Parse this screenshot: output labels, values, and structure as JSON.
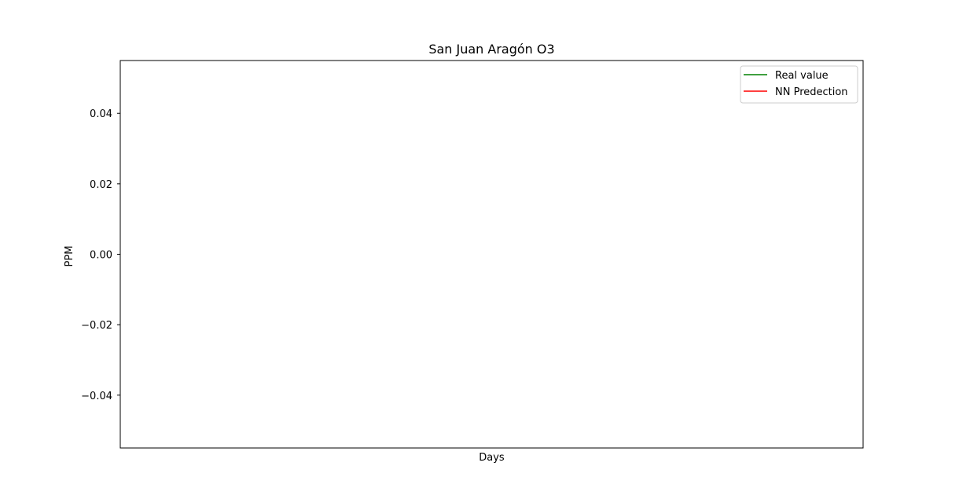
{
  "chart_data": {
    "type": "line",
    "title": "San Juan Aragón O3",
    "xlabel": "Days",
    "ylabel": "PPM",
    "ylim": [
      -0.055,
      0.055
    ],
    "y_ticks": [
      0.04,
      0.02,
      0.0,
      -0.02,
      -0.04
    ],
    "y_tick_labels": [
      "0.04",
      "0.02",
      "0.00",
      "−0.02",
      "−0.04"
    ],
    "x_ticks": [],
    "grid": false,
    "legend_position": "upper right",
    "series": [
      {
        "name": "Real value",
        "color": "#008000",
        "x": [],
        "y": []
      },
      {
        "name": "NN Predection",
        "color": "#ff0000",
        "x": [],
        "y": []
      }
    ]
  }
}
